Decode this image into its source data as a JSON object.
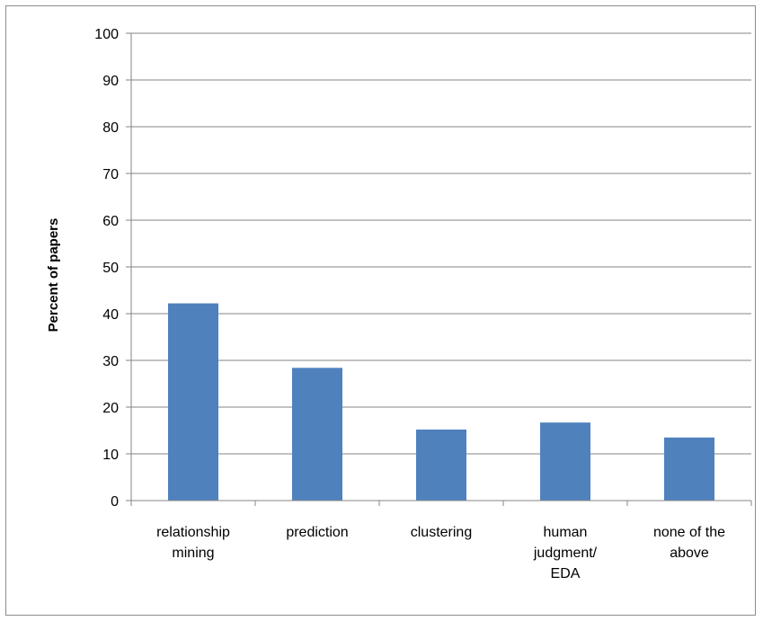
{
  "chart_data": {
    "type": "bar",
    "title": "",
    "xlabel": "",
    "ylabel": "Percent of papers",
    "categories": [
      [
        "relationship",
        "mining"
      ],
      [
        "prediction"
      ],
      [
        "clustering"
      ],
      [
        "human",
        "judgment/",
        "EDA"
      ],
      [
        "none of the",
        "above"
      ]
    ],
    "values": [
      42.2,
      28.4,
      15.2,
      16.7,
      13.5
    ],
    "ylim": [
      0,
      100
    ],
    "yticks": [
      0,
      10,
      20,
      30,
      40,
      50,
      60,
      70,
      80,
      90,
      100
    ],
    "grid": true,
    "legend": "none",
    "colors": {
      "bar": "#4f81bd",
      "grid": "#868686",
      "axis": "#868686"
    }
  }
}
